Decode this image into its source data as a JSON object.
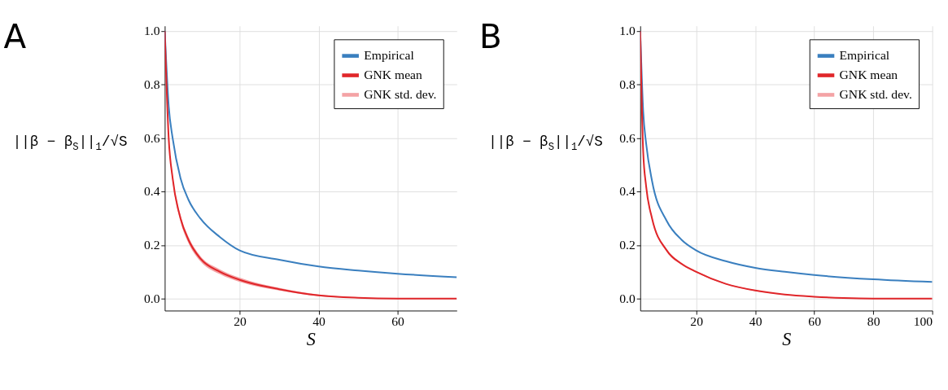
{
  "chart_data": [
    {
      "type": "line",
      "annotations": [
        "A"
      ],
      "xlabel": "S",
      "ylabel": "||β − β$_{S}$||$_{1}$/√S",
      "xlim": [
        1,
        75
      ],
      "xticks": [
        20,
        40,
        60
      ],
      "ylim": [
        -0.045,
        1.02
      ],
      "yticks": [
        {
          "value": 0,
          "label": "0.0"
        },
        {
          "value": 0.2,
          "label": "0.2"
        },
        {
          "value": 0.4,
          "label": "0.4"
        },
        {
          "value": 0.6,
          "label": "0.6"
        },
        {
          "value": 0.8,
          "label": "0.8"
        },
        {
          "value": 1,
          "label": "1.0"
        }
      ],
      "grid": true,
      "legend": "top right",
      "series": [
        {
          "name": "Empirical",
          "type": "line",
          "color": "#3a7fbf",
          "x": [
            1,
            2,
            3,
            5,
            7,
            10,
            15,
            20,
            30,
            40,
            50,
            60,
            75
          ],
          "values": [
            1.0,
            0.72,
            0.6,
            0.45,
            0.37,
            0.3,
            0.23,
            0.18,
            0.145,
            0.12,
            0.105,
            0.093,
            0.08
          ]
        },
        {
          "name": "GNK mean",
          "type": "line",
          "color": "#e0262a",
          "x": [
            1,
            2,
            3,
            5,
            7,
            10,
            15,
            20,
            30,
            40,
            50,
            60,
            75
          ],
          "values": [
            1.0,
            0.6,
            0.45,
            0.3,
            0.22,
            0.15,
            0.1,
            0.07,
            0.035,
            0.012,
            0.003,
            0.0,
            0.0
          ],
          "lower": [
            1.0,
            0.59,
            0.44,
            0.288,
            0.208,
            0.14,
            0.091,
            0.062,
            0.03,
            0.009,
            0.002,
            0.0,
            0.0
          ],
          "upper": [
            1.0,
            0.61,
            0.46,
            0.312,
            0.232,
            0.16,
            0.109,
            0.078,
            0.04,
            0.015,
            0.004,
            0.0,
            0.0
          ]
        },
        {
          "name": "GNK std. dev.",
          "type": "area",
          "color": "#f4a3a5"
        }
      ]
    },
    {
      "type": "line",
      "annotations": [
        "B"
      ],
      "xlabel": "S",
      "ylabel": "||β − β$_{S}$||$_{1}$/√S",
      "xlim": [
        1,
        100
      ],
      "xticks": [
        20,
        40,
        60,
        80,
        100
      ],
      "ylim": [
        -0.045,
        1.02
      ],
      "yticks": [
        {
          "value": 0,
          "label": "0.0"
        },
        {
          "value": 0.2,
          "label": "0.2"
        },
        {
          "value": 0.4,
          "label": "0.4"
        },
        {
          "value": 0.6,
          "label": "0.6"
        },
        {
          "value": 0.8,
          "label": "0.8"
        },
        {
          "value": 1,
          "label": "1.0"
        }
      ],
      "grid": true,
      "legend": "top right",
      "series": [
        {
          "name": "Empirical",
          "type": "line",
          "color": "#3a7fbf",
          "x": [
            1,
            2,
            3,
            5,
            10,
            15,
            20,
            30,
            40,
            50,
            60,
            80,
            100
          ],
          "values": [
            1.0,
            0.7,
            0.58,
            0.44,
            0.29,
            0.22,
            0.18,
            0.14,
            0.115,
            0.1,
            0.088,
            0.072,
            0.062
          ]
        },
        {
          "name": "GNK mean",
          "type": "line",
          "color": "#e0262a",
          "x": [
            1,
            2,
            3,
            5,
            10,
            15,
            20,
            30,
            40,
            50,
            60,
            70,
            80,
            100
          ],
          "values": [
            1.0,
            0.55,
            0.42,
            0.3,
            0.18,
            0.13,
            0.1,
            0.055,
            0.03,
            0.015,
            0.007,
            0.002,
            0.0,
            0.0
          ],
          "lower": [
            1.0,
            0.545,
            0.415,
            0.295,
            0.175,
            0.126,
            0.097,
            0.053,
            0.028,
            0.014,
            0.006,
            0.002,
            0.0,
            0.0
          ],
          "upper": [
            1.0,
            0.555,
            0.425,
            0.305,
            0.185,
            0.134,
            0.103,
            0.057,
            0.032,
            0.016,
            0.008,
            0.002,
            0.0,
            0.0
          ]
        },
        {
          "name": "GNK std. dev.",
          "type": "area",
          "color": "#f4a3a5"
        }
      ]
    }
  ]
}
